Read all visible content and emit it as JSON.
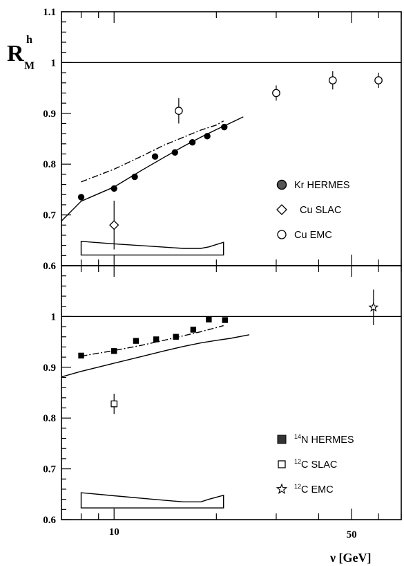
{
  "chart_data": [
    {
      "type": "scatter",
      "panel": "top",
      "x_scale": "log",
      "xlim": [
        7,
        70
      ],
      "ylim": [
        0.6,
        1.1
      ],
      "y_ticks": [
        "0.6",
        "0.7",
        "0.8",
        "0.9",
        "1",
        "1.1"
      ],
      "x_ticks": [
        10,
        50
      ],
      "ylabel": {
        "main": "R",
        "sup": "h",
        "sub": "M"
      },
      "reference_line": 1.0,
      "series": [
        {
          "name": "Kr HERMES",
          "marker": "filled-circle",
          "points": [
            {
              "x": 8.0,
              "y": 0.735
            },
            {
              "x": 10.0,
              "y": 0.752
            },
            {
              "x": 11.5,
              "y": 0.775
            },
            {
              "x": 13.2,
              "y": 0.815
            },
            {
              "x": 15.1,
              "y": 0.823
            },
            {
              "x": 17.0,
              "y": 0.843
            },
            {
              "x": 18.8,
              "y": 0.855
            },
            {
              "x": 21.1,
              "y": 0.873
            }
          ]
        },
        {
          "name": "Cu SLAC",
          "marker": "open-diamond",
          "points": [
            {
              "x": 10.0,
              "y": 0.68,
              "err": 0.048
            }
          ]
        },
        {
          "name": "Cu EMC",
          "marker": "open-circle",
          "points": [
            {
              "x": 15.5,
              "y": 0.905,
              "err": 0.025
            },
            {
              "x": 30.0,
              "y": 0.94,
              "err": 0.015
            },
            {
              "x": 44.0,
              "y": 0.965,
              "err": 0.018
            },
            {
              "x": 60.0,
              "y": 0.965,
              "err": 0.015
            }
          ]
        }
      ],
      "curves": [
        {
          "style": "solid",
          "points": [
            [
              7,
              0.688
            ],
            [
              8,
              0.727
            ],
            [
              10,
              0.755
            ],
            [
              12,
              0.787
            ],
            [
              14,
              0.813
            ],
            [
              16,
              0.835
            ],
            [
              18,
              0.853
            ],
            [
              20,
              0.868
            ],
            [
              22,
              0.881
            ],
            [
              24,
              0.893
            ]
          ]
        },
        {
          "style": "dash-dot",
          "points": [
            [
              8,
              0.765
            ],
            [
              10,
              0.79
            ],
            [
              12,
              0.815
            ],
            [
              14,
              0.837
            ],
            [
              16,
              0.853
            ],
            [
              18,
              0.867
            ],
            [
              20,
              0.877
            ],
            [
              21,
              0.885
            ]
          ]
        }
      ],
      "systematic_band": {
        "x_range": [
          8,
          21
        ],
        "upper": [
          [
            8,
            0.648
          ],
          [
            10,
            0.643
          ],
          [
            13,
            0.638
          ],
          [
            16,
            0.634
          ],
          [
            18,
            0.634
          ],
          [
            19,
            0.637
          ],
          [
            21,
            0.646
          ]
        ],
        "lower": 0.621
      },
      "legend": {
        "placement": "right-middle",
        "labels": [
          "Kr HERMES",
          "Cu SLAC",
          "Cu EMC"
        ]
      }
    },
    {
      "type": "scatter",
      "panel": "bottom",
      "x_scale": "log",
      "xlim": [
        7,
        70
      ],
      "ylim": [
        0.6,
        1.1
      ],
      "y_ticks": [
        "0.6",
        "0.7",
        "0.8",
        "0.9",
        "1"
      ],
      "x_ticks": [
        10,
        50
      ],
      "x_tick_labels": [
        "10",
        "50"
      ],
      "xlabel": "ν  [GeV]",
      "reference_line": 1.0,
      "series": [
        {
          "name": "14N HERMES",
          "marker": "filled-square",
          "points": [
            {
              "x": 8.0,
              "y": 0.923
            },
            {
              "x": 10.0,
              "y": 0.932
            },
            {
              "x": 11.6,
              "y": 0.952
            },
            {
              "x": 13.3,
              "y": 0.955
            },
            {
              "x": 15.2,
              "y": 0.96
            },
            {
              "x": 17.1,
              "y": 0.974
            },
            {
              "x": 19.0,
              "y": 0.994
            },
            {
              "x": 21.2,
              "y": 0.993
            }
          ]
        },
        {
          "name": "12C SLAC",
          "marker": "open-square",
          "points": [
            {
              "x": 10.0,
              "y": 0.828,
              "err": 0.02
            }
          ]
        },
        {
          "name": "12C EMC",
          "marker": "open-star",
          "points": [
            {
              "x": 58.0,
              "y": 1.018,
              "err": 0.035
            }
          ]
        }
      ],
      "curves": [
        {
          "style": "solid",
          "points": [
            [
              7,
              0.881
            ],
            [
              8,
              0.892
            ],
            [
              10,
              0.908
            ],
            [
              12,
              0.921
            ],
            [
              14,
              0.932
            ],
            [
              16,
              0.941
            ],
            [
              18,
              0.948
            ],
            [
              20,
              0.953
            ],
            [
              22,
              0.957
            ],
            [
              25,
              0.964
            ]
          ]
        },
        {
          "style": "dash-dot",
          "points": [
            [
              8,
              0.922
            ],
            [
              10,
              0.933
            ],
            [
              12,
              0.943
            ],
            [
              14,
              0.953
            ],
            [
              16,
              0.962
            ],
            [
              18,
              0.97
            ],
            [
              20,
              0.978
            ],
            [
              21,
              0.982
            ]
          ]
        }
      ],
      "systematic_band": {
        "x_range": [
          8,
          21
        ],
        "upper": [
          [
            8,
            0.653
          ],
          [
            10,
            0.647
          ],
          [
            13,
            0.64
          ],
          [
            16,
            0.635
          ],
          [
            18,
            0.635
          ],
          [
            19,
            0.64
          ],
          [
            21,
            0.648
          ]
        ],
        "lower": 0.623
      },
      "legend": {
        "placement": "right-bottom",
        "labels": [
          {
            "sup": "14",
            "text": "N HERMES"
          },
          {
            "sup": "12",
            "text": "C SLAC"
          },
          {
            "sup": "12",
            "text": "C EMC"
          }
        ]
      }
    }
  ]
}
